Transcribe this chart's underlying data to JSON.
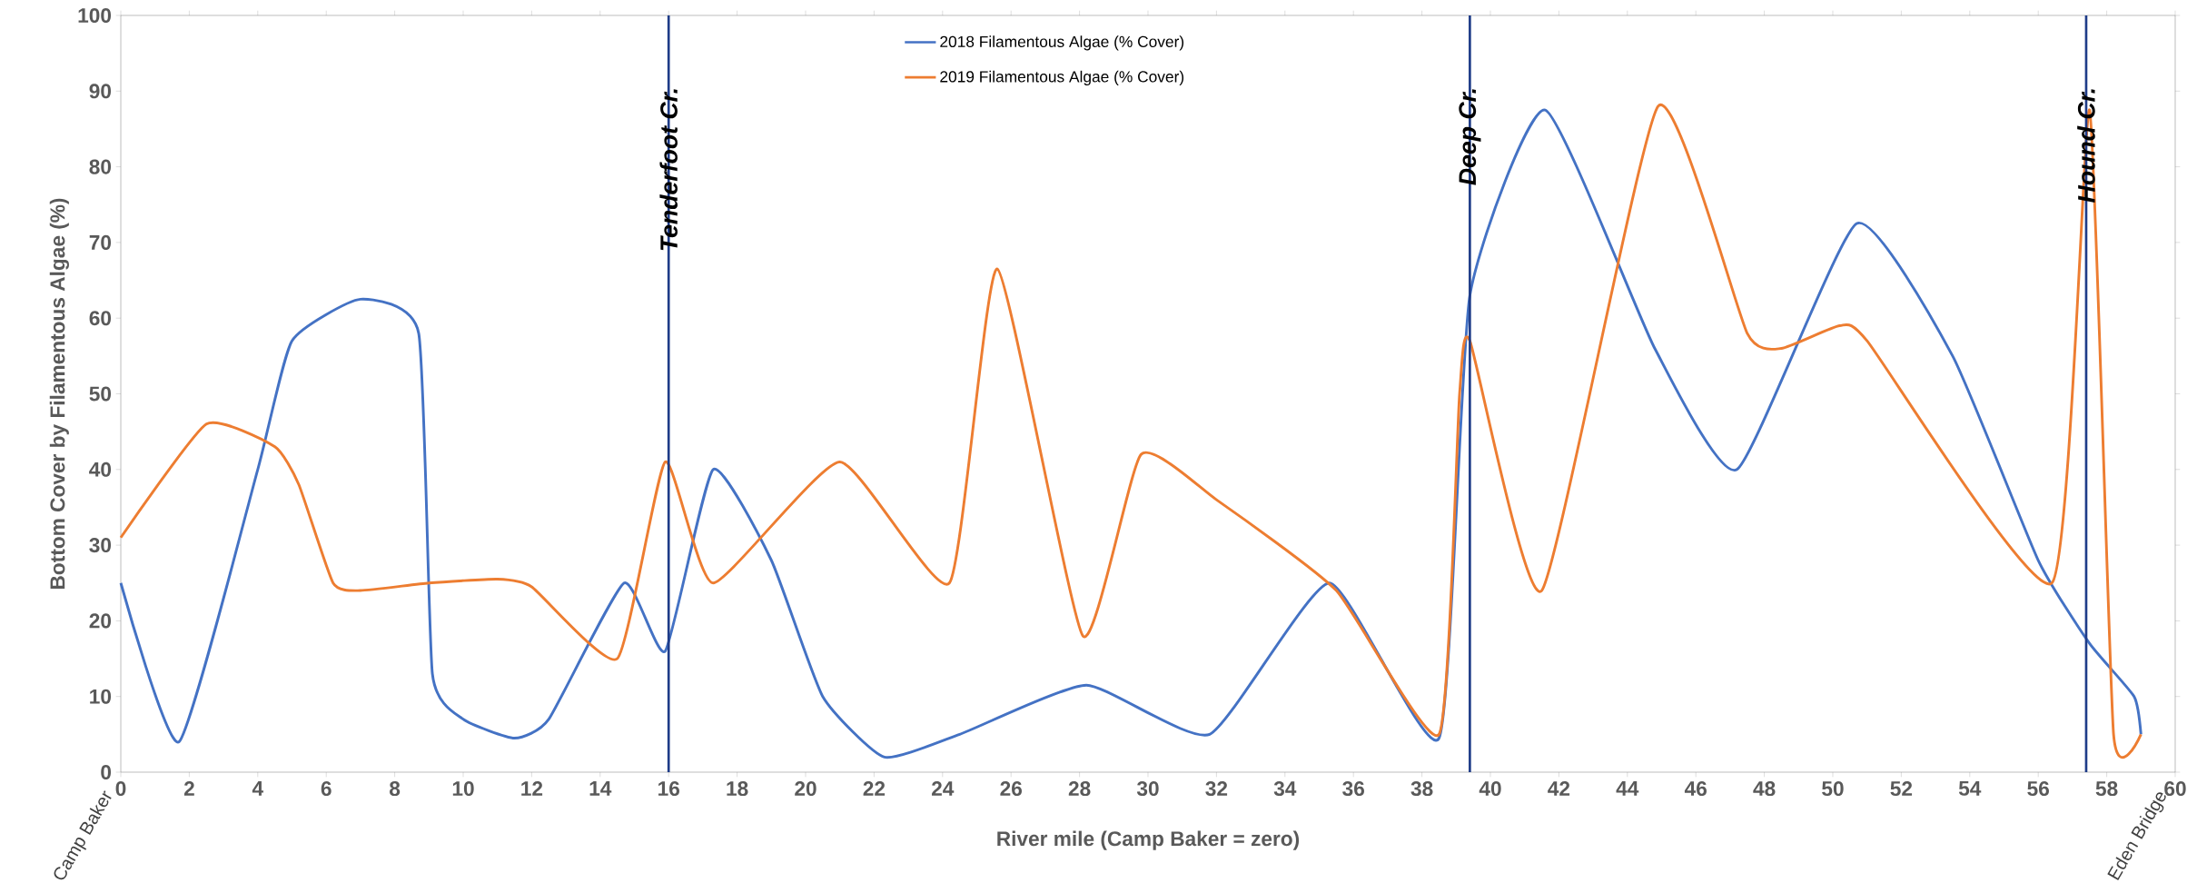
{
  "chart_data": {
    "type": "line",
    "xlabel": "River mile (Camp Baker = zero)",
    "ylabel": "Bottom Cover by Filamentous Algae (%)",
    "xlim": [
      0,
      60
    ],
    "ylim": [
      0,
      100
    ],
    "xticks": [
      0,
      2,
      4,
      6,
      8,
      10,
      12,
      14,
      16,
      18,
      20,
      22,
      24,
      26,
      28,
      30,
      32,
      34,
      36,
      38,
      40,
      42,
      44,
      46,
      48,
      50,
      52,
      54,
      56,
      58,
      60
    ],
    "yticks": [
      0,
      10,
      20,
      30,
      40,
      50,
      60,
      70,
      80,
      90,
      100
    ],
    "legend": "top",
    "marker": "none",
    "line_style": "solid",
    "series": [
      {
        "name": "2018 Filamentous Algae (% Cover)",
        "color": "#4472c4",
        "x": [
          0,
          1.7,
          4,
          5,
          7,
          8.7,
          9.1,
          10,
          11.5,
          12.5,
          14.7,
          15.9,
          17.3,
          19,
          20.5,
          22.3,
          24.5,
          28.2,
          31.8,
          35.3,
          38.5,
          39.4,
          41.6,
          44.8,
          47.2,
          50.7,
          53.5,
          56,
          57.5,
          58.8,
          59
        ],
        "values": [
          25,
          4,
          40,
          57,
          62.5,
          58,
          13,
          7,
          4.5,
          7,
          25,
          16,
          40,
          28,
          10,
          2,
          5,
          11.5,
          5,
          25,
          4.5,
          63,
          87.5,
          56,
          40,
          72.5,
          55,
          28,
          17,
          10,
          5
        ]
      },
      {
        "name": "2019 Filamentous Algae (% Cover)",
        "color": "#ed7d31",
        "x": [
          0,
          2.5,
          4.5,
          5.2,
          6.2,
          7,
          9,
          11,
          12,
          14.5,
          15.9,
          17.3,
          21,
          24.2,
          25.6,
          28.1,
          29.8,
          32,
          35.5,
          38.5,
          39.1,
          39.4,
          41.5,
          44.9,
          47.5,
          48.5,
          50.2,
          51,
          56.4,
          57.5,
          58.2,
          59
        ],
        "values": [
          31,
          46,
          43,
          38,
          25,
          24,
          25,
          25.5,
          24.5,
          15,
          41,
          25,
          41,
          25,
          66.5,
          18,
          42,
          36,
          24,
          5,
          50,
          57,
          24,
          88,
          58,
          56,
          59,
          57,
          25,
          87.5,
          5,
          5
        ]
      }
    ],
    "ref_lines": [
      {
        "axis": "x",
        "value": 16,
        "label": "Tenderfoot Cr.",
        "color": "#1f3c88"
      },
      {
        "axis": "x",
        "value": 39.4,
        "label": "Deep Cr.",
        "color": "#1f3c88"
      },
      {
        "axis": "x",
        "value": 57.4,
        "label": "Hound Cr.",
        "color": "#1f3c88"
      }
    ],
    "annotations": [
      "Camp Baker",
      "Eden Bridge"
    ]
  }
}
